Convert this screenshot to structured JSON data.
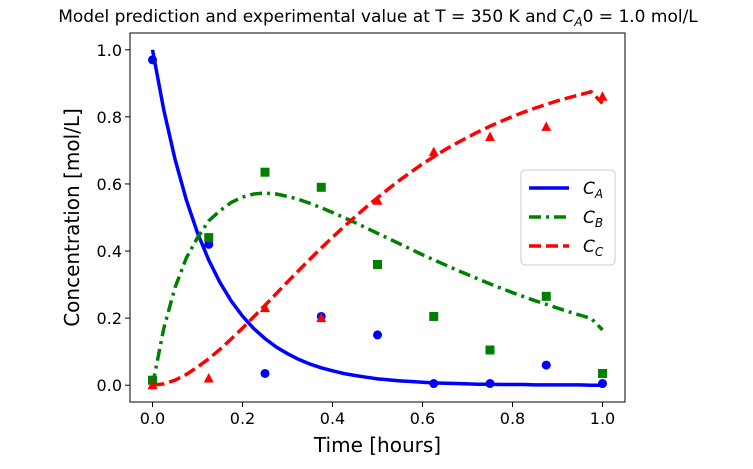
{
  "chart_data": {
    "type": "line",
    "title_prefix": "Model prediction and experimental value at T = 350 K and ",
    "title_var": "C",
    "title_sub": "A",
    "title_suffix": "0 = 1.0 mol/L",
    "xlabel": "Time [hours]",
    "ylabel": "Concentration [mol/L]",
    "xlim": [
      -0.05,
      1.05
    ],
    "ylim": [
      -0.05,
      1.05
    ],
    "xticks": [
      0.0,
      0.2,
      0.4,
      0.6,
      0.8,
      1.0
    ],
    "xtick_labels": [
      "0.0",
      "0.2",
      "0.4",
      "0.6",
      "0.8",
      "1.0"
    ],
    "yticks": [
      0.0,
      0.2,
      0.4,
      0.6,
      0.8,
      1.0
    ],
    "ytick_labels": [
      "0.0",
      "0.2",
      "0.4",
      "0.6",
      "0.8",
      "1.0"
    ],
    "grid": false,
    "legend_position": "center-right",
    "model": {
      "x": [
        0.0,
        0.025,
        0.05,
        0.075,
        0.1,
        0.125,
        0.15,
        0.175,
        0.2,
        0.225,
        0.25,
        0.275,
        0.3,
        0.325,
        0.35,
        0.375,
        0.4,
        0.425,
        0.45,
        0.475,
        0.5,
        0.525,
        0.55,
        0.575,
        0.6,
        0.625,
        0.65,
        0.675,
        0.7,
        0.725,
        0.75,
        0.775,
        0.8,
        0.825,
        0.85,
        0.875,
        0.9,
        0.925,
        0.95,
        0.975,
        1.0
      ],
      "series": [
        {
          "name_var": "C",
          "name_sub": "A",
          "color": "#0000ff",
          "dash": "solid",
          "values": [
            1.0,
            0.821,
            0.674,
            0.553,
            0.454,
            0.373,
            0.306,
            0.251,
            0.206,
            0.169,
            0.139,
            0.114,
            0.094,
            0.077,
            0.063,
            0.052,
            0.043,
            0.035,
            0.029,
            0.024,
            0.019,
            0.016,
            0.013,
            0.011,
            0.009,
            0.007,
            0.006,
            0.005,
            0.004,
            0.003,
            0.003,
            0.002,
            0.002,
            0.002,
            0.001,
            0.001,
            0.001,
            0.001,
            0.001,
            0.0,
            0.0
          ]
        },
        {
          "name_var": "C",
          "name_sub": "B",
          "color": "#008000",
          "dash": "dashdot",
          "values": [
            0.0,
            0.169,
            0.291,
            0.379,
            0.44,
            0.49,
            0.52,
            0.545,
            0.561,
            0.57,
            0.573,
            0.57,
            0.563,
            0.554,
            0.542,
            0.529,
            0.515,
            0.5,
            0.485,
            0.469,
            0.453,
            0.437,
            0.421,
            0.405,
            0.389,
            0.374,
            0.359,
            0.344,
            0.33,
            0.316,
            0.302,
            0.289,
            0.276,
            0.264,
            0.252,
            0.241,
            0.23,
            0.219,
            0.209,
            0.199,
            0.165
          ]
        },
        {
          "name_var": "C",
          "name_sub": "C",
          "color": "#ff0000",
          "dash": "dashed",
          "values": [
            0.0,
            0.004,
            0.015,
            0.032,
            0.054,
            0.079,
            0.107,
            0.138,
            0.17,
            0.204,
            0.238,
            0.273,
            0.308,
            0.342,
            0.376,
            0.409,
            0.441,
            0.472,
            0.502,
            0.531,
            0.559,
            0.586,
            0.612,
            0.636,
            0.66,
            0.681,
            0.702,
            0.721,
            0.739,
            0.756,
            0.772,
            0.787,
            0.801,
            0.814,
            0.826,
            0.837,
            0.848,
            0.857,
            0.866,
            0.875,
            0.84
          ]
        }
      ]
    },
    "experimental": {
      "x": [
        0.0,
        0.125,
        0.25,
        0.375,
        0.5,
        0.625,
        0.75,
        0.875,
        1.0
      ],
      "series": [
        {
          "series": "A",
          "marker": "circle",
          "color": "#0000ff",
          "values": [
            0.97,
            0.42,
            0.035,
            0.205,
            0.15,
            0.005,
            0.005,
            0.06,
            0.005
          ]
        },
        {
          "series": "B",
          "marker": "square",
          "color": "#008000",
          "values": [
            0.015,
            0.44,
            0.635,
            0.59,
            0.36,
            0.205,
            0.105,
            0.265,
            0.035
          ]
        },
        {
          "series": "C",
          "marker": "triangle",
          "color": "#ff0000",
          "values": [
            0.0,
            0.02,
            0.23,
            0.2,
            0.55,
            0.695,
            0.74,
            0.77,
            0.86
          ]
        }
      ]
    }
  }
}
